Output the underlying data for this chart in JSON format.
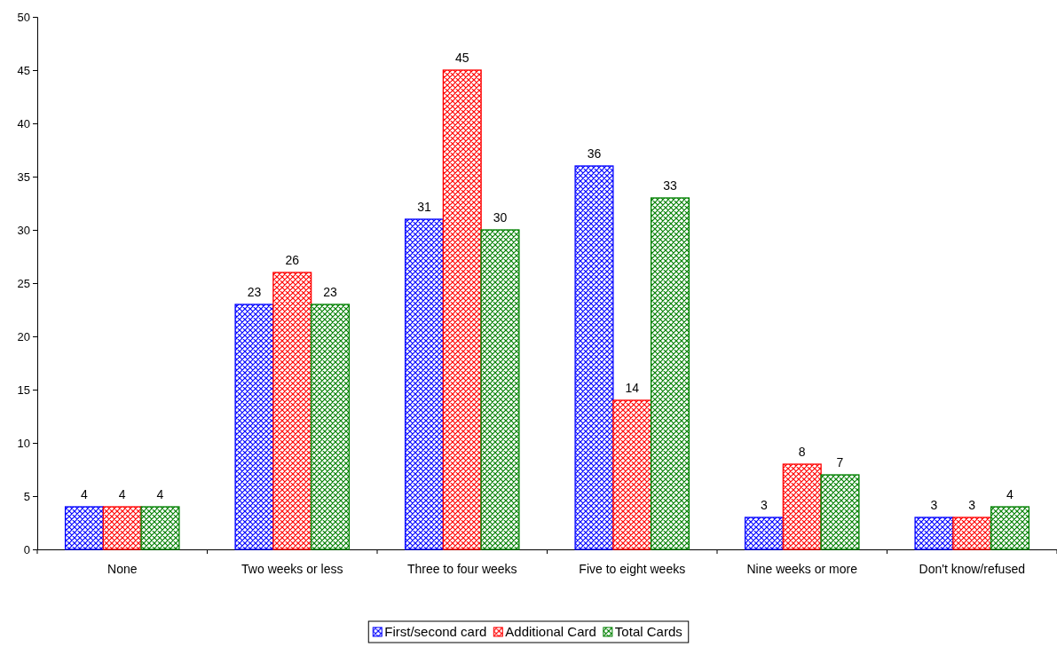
{
  "chart_data": {
    "type": "bar",
    "categories": [
      "None",
      "Two weeks or less",
      "Three to four weeks",
      "Five to eight weeks",
      "Nine weeks or more",
      "Don't know/refused"
    ],
    "series": [
      {
        "name": "First/second card",
        "color": "#0000ff",
        "values": [
          4,
          23,
          31,
          36,
          3,
          3
        ]
      },
      {
        "name": "Additional Card",
        "color": "#ff0000",
        "values": [
          4,
          26,
          45,
          14,
          8,
          3
        ]
      },
      {
        "name": "Total Cards",
        "color": "#008000",
        "values": [
          4,
          23,
          30,
          33,
          7,
          4
        ]
      }
    ],
    "ylim": [
      0,
      50
    ],
    "yticks": [
      0,
      5,
      10,
      15,
      20,
      25,
      30,
      35,
      40,
      45,
      50
    ],
    "grid": false,
    "legend": "bottom",
    "data_labels": true
  }
}
